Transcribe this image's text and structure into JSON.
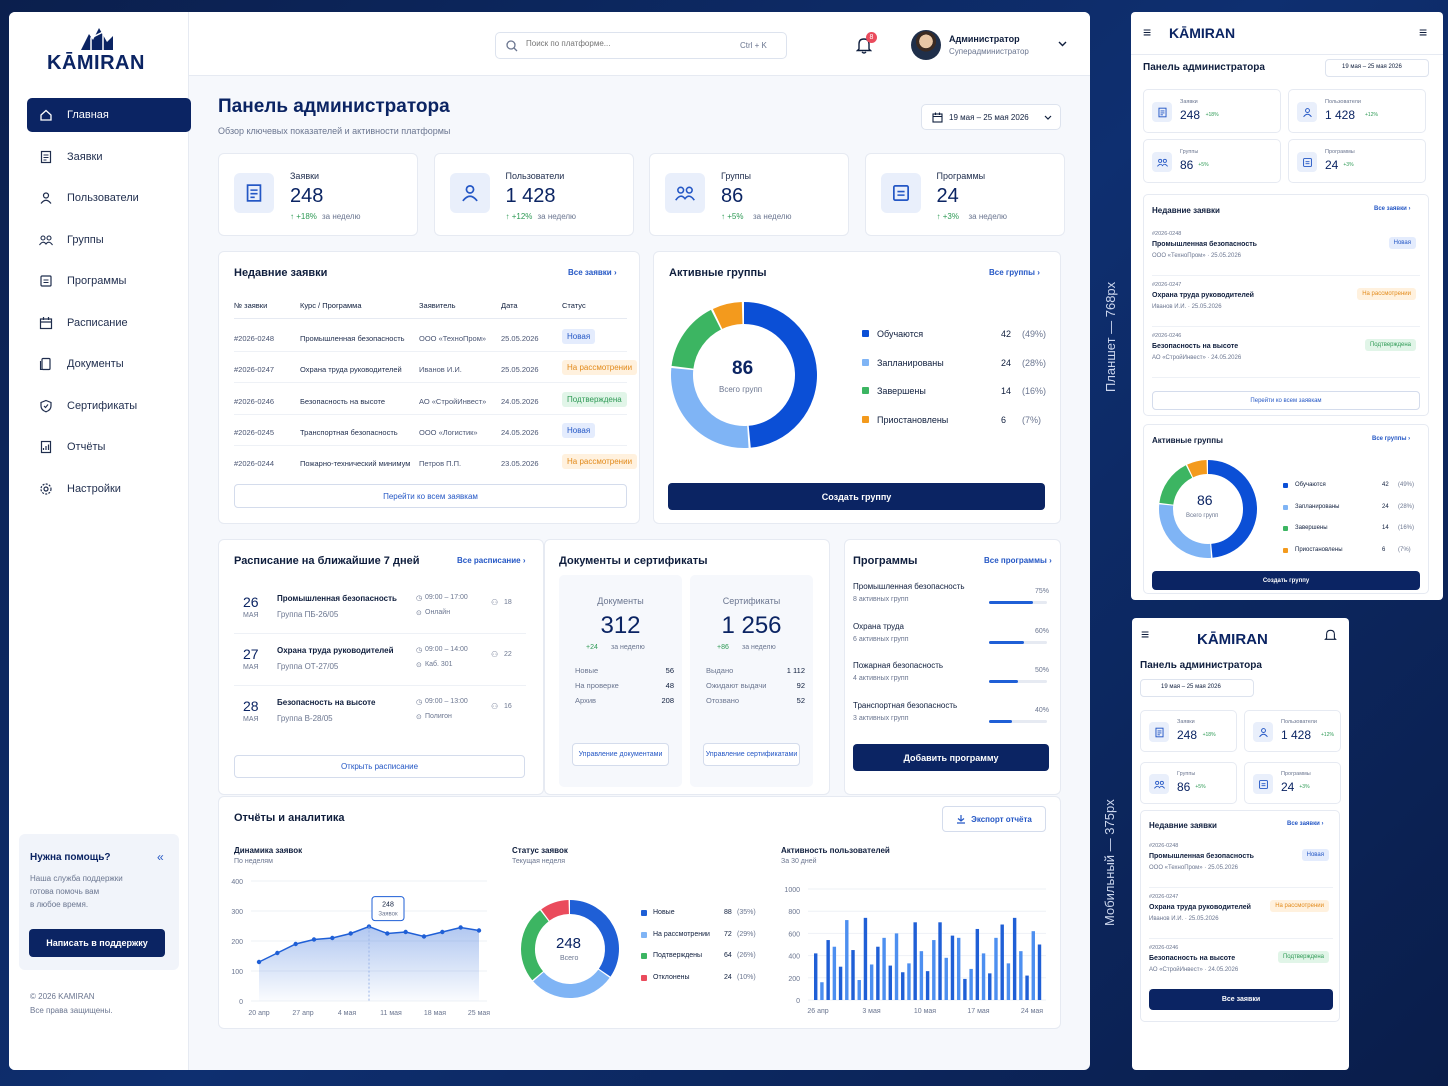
{
  "brand": {
    "logo_text": "KĀMIRAN"
  },
  "header": {
    "search_placeholder": "Поиск по платформе...",
    "search_shortcut": "Ctrl + K",
    "notif_count": "8",
    "user_name": "Администратор",
    "user_role": "Суперадминистратор"
  },
  "sidebar": {
    "items": [
      {
        "label": "Главная",
        "icon": "home-icon"
      },
      {
        "label": "Заявки",
        "icon": "requests-icon"
      },
      {
        "label": "Пользователи",
        "icon": "users-icon"
      },
      {
        "label": "Группы",
        "icon": "groups-icon"
      },
      {
        "label": "Программы",
        "icon": "programs-icon"
      },
      {
        "label": "Расписание",
        "icon": "calendar-icon"
      },
      {
        "label": "Документы",
        "icon": "documents-icon"
      },
      {
        "label": "Сертификаты",
        "icon": "certificate-icon"
      },
      {
        "label": "Отчёты",
        "icon": "report-icon"
      },
      {
        "label": "Настройки",
        "icon": "gear-icon"
      }
    ],
    "help": {
      "title": "Нужна помощь?",
      "text1": "Наша служба поддержки",
      "text2": "готова помочь вам",
      "text3": "в любое время.",
      "button": "Написать в поддержку"
    },
    "copyright": "© 2026 KAMIRAN",
    "rights": "Все права защищены."
  },
  "page": {
    "title": "Панель администратора",
    "subtitle": "Обзор ключевых показателей и активности платформы",
    "date_range": "19 мая – 25 мая 2026"
  },
  "stats": [
    {
      "label": "Заявки",
      "value": "248",
      "delta": "↑ +18%",
      "period": "за неделю"
    },
    {
      "label": "Пользователи",
      "value": "1 428",
      "delta": "↑ +12%",
      "period": "за неделю"
    },
    {
      "label": "Группы",
      "value": "86",
      "delta": "↑ +5%",
      "period": "за неделю"
    },
    {
      "label": "Программы",
      "value": "24",
      "delta": "↑ +3%",
      "period": "за неделю"
    }
  ],
  "requests": {
    "title": "Недавние заявки",
    "all_link": "Все заявки",
    "columns": [
      "№ заявки",
      "Курс / Программа",
      "Заявитель",
      "Дата",
      "Статус"
    ],
    "rows": [
      {
        "id": "#2026-0248",
        "course": "Промышленная безопасность",
        "applicant": "ООО «ТехноПром»",
        "date": "25.05.2026",
        "status": "Новая",
        "kind": "new"
      },
      {
        "id": "#2026-0247",
        "course": "Охрана труда руководителей",
        "applicant": "Иванов И.И.",
        "date": "25.05.2026",
        "status": "На рассмотрении",
        "kind": "rev"
      },
      {
        "id": "#2026-0246",
        "course": "Безопасность на высоте",
        "applicant": "АО «СтройИнвест»",
        "date": "24.05.2026",
        "status": "Подтверждена",
        "kind": "ok"
      },
      {
        "id": "#2026-0245",
        "course": "Транспортная безопасность",
        "applicant": "ООО «Логистик»",
        "date": "24.05.2026",
        "status": "Новая",
        "kind": "new"
      },
      {
        "id": "#2026-0244",
        "course": "Пожарно-технический минимум",
        "applicant": "Петров П.П.",
        "date": "23.05.2026",
        "status": "На рассмотрении",
        "kind": "rev"
      }
    ],
    "footer_button": "Перейти ко всем заявкам"
  },
  "groups": {
    "title": "Активные группы",
    "all_link": "Все группы",
    "total": "86",
    "total_label": "Всего групп",
    "button": "Создать группу",
    "legend": [
      {
        "name": "Обучаются",
        "value": "42",
        "pct": "(49%)",
        "color": "#0b4fd6",
        "share": 49
      },
      {
        "name": "Запланированы",
        "value": "24",
        "pct": "(28%)",
        "color": "#7fb4f5",
        "share": 28
      },
      {
        "name": "Завершены",
        "value": "14",
        "pct": "(16%)",
        "color": "#3cb562",
        "share": 16
      },
      {
        "name": "Приостановлены",
        "value": "6",
        "pct": "(7%)",
        "color": "#f39a1d",
        "share": 7
      }
    ]
  },
  "schedule": {
    "title": "Расписание на ближайшие 7 дней",
    "all_link": "Все расписание",
    "button": "Открыть расписание",
    "items": [
      {
        "day": "26",
        "month": "МАЯ",
        "course": "Промышленная безопасность",
        "group": "Группа ПБ-26/05",
        "time": "09:00 – 17:00",
        "place": "Онлайн",
        "count": "18"
      },
      {
        "day": "27",
        "month": "МАЯ",
        "course": "Охрана труда руководителей",
        "group": "Группа ОТ-27/05",
        "time": "09:00 – 14:00",
        "place": "Каб. 301",
        "count": "22"
      },
      {
        "day": "28",
        "month": "МАЯ",
        "course": "Безопасность на высоте",
        "group": "Группа В-28/05",
        "time": "09:00 – 13:00",
        "place": "Полигон",
        "count": "16"
      }
    ]
  },
  "docs": {
    "title": "Документы и сертификаты",
    "documents": {
      "label": "Документы",
      "value": "312",
      "delta": "+24",
      "period": "за неделю",
      "rows": [
        [
          "Новые",
          "56"
        ],
        [
          "На проверке",
          "48"
        ],
        [
          "Архив",
          "208"
        ]
      ],
      "button": "Управление документами"
    },
    "certificates": {
      "label": "Сертификаты",
      "value": "1 256",
      "delta": "+86",
      "period": "за неделю",
      "rows": [
        [
          "Выдано",
          "1 112"
        ],
        [
          "Ожидают выдачи",
          "92"
        ],
        [
          "Отозвано",
          "52"
        ]
      ],
      "button": "Управление сертификатами"
    }
  },
  "programs": {
    "title": "Программы",
    "all_link": "Все программы",
    "button": "Добавить программу",
    "items": [
      {
        "name": "Промышленная безопасность",
        "groups": "8 активных групп",
        "pct": "75%",
        "value": 75
      },
      {
        "name": "Охрана труда",
        "groups": "6 активных групп",
        "pct": "60%",
        "value": 60
      },
      {
        "name": "Пожарная безопасность",
        "groups": "4 активных групп",
        "pct": "50%",
        "value": 50
      },
      {
        "name": "Транспортная безопасность",
        "groups": "3 активных групп",
        "pct": "40%",
        "value": 40
      }
    ]
  },
  "reports": {
    "title": "Отчёты и аналитика",
    "export": "Экспорт отчёта",
    "line": {
      "title": "Динамика заявок",
      "sub": "По неделям",
      "tooltip_value": "248",
      "tooltip_label": "Заявок"
    },
    "donut": {
      "title": "Статус заявок",
      "sub": "Текущая неделя",
      "total": "248",
      "total_label": "Всего",
      "legend": [
        {
          "name": "Новые",
          "value": "88",
          "pct": "(35%)",
          "color": "#1f5fd6",
          "share": 35
        },
        {
          "name": "На рассмотрении",
          "value": "72",
          "pct": "(29%)",
          "color": "#7fb4f5",
          "share": 29
        },
        {
          "name": "Подтверждены",
          "value": "64",
          "pct": "(26%)",
          "color": "#3cb562",
          "share": 26
        },
        {
          "name": "Отклонены",
          "value": "24",
          "pct": "(10%)",
          "color": "#ea4b5c",
          "share": 10
        }
      ]
    },
    "bars": {
      "title": "Активность пользователей",
      "sub": "За 30 дней"
    }
  },
  "chart_data": [
    {
      "type": "line",
      "title": "Динамика заявок",
      "x": [
        "20 апр",
        "",
        "27 апр",
        "",
        "4 мая",
        "",
        "",
        "11 мая",
        "",
        "",
        "18 мая",
        "",
        "25 мая"
      ],
      "x_ticks": [
        "20 апр",
        "27 апр",
        "4 мая",
        "11 мая",
        "18 мая",
        "25 мая"
      ],
      "series": [
        {
          "values": [
            130,
            160,
            190,
            205,
            210,
            225,
            248,
            225,
            230,
            215,
            230,
            245,
            235
          ]
        }
      ],
      "ylim": [
        0,
        400
      ],
      "yticks": [
        "0",
        "100",
        "200",
        "300",
        "400"
      ]
    },
    {
      "type": "pie",
      "title": "Статус заявок",
      "categories": [
        "Новые",
        "На рассмотрении",
        "Подтверждены",
        "Отклонены"
      ],
      "values": [
        88,
        72,
        64,
        24
      ]
    },
    {
      "type": "bar",
      "title": "Активность пользователей",
      "x_ticks": [
        "26 апр",
        "3 мая",
        "10 мая",
        "17 мая",
        "24 мая"
      ],
      "ylim": [
        0,
        1000
      ],
      "yticks": [
        "0",
        "200",
        "400",
        "600",
        "800",
        "1000"
      ],
      "values": [
        420,
        160,
        540,
        480,
        300,
        720,
        450,
        180,
        740,
        320,
        480,
        560,
        310,
        600,
        250,
        330,
        700,
        440,
        260,
        540,
        700,
        380,
        580,
        560,
        190,
        280,
        640,
        420,
        240,
        560,
        680,
        330,
        740,
        440,
        220,
        620,
        500
      ]
    }
  ],
  "tablet": {
    "label": "Планшет — 768px",
    "title": "Панель администратора",
    "date_range": "19 мая – 25 мая 2026",
    "stats": [
      {
        "label": "Заявки",
        "value": "248",
        "delta": "+18%"
      },
      {
        "label": "Пользователи",
        "value": "1 428",
        "delta": "+12%"
      },
      {
        "label": "Группы",
        "value": "86",
        "delta": "+5%"
      },
      {
        "label": "Программы",
        "value": "24",
        "delta": "+3%"
      }
    ],
    "requests_title": "Недавние заявки",
    "requests_link": "Все заявки",
    "requests_button": "Перейти ко всем заявкам",
    "requests": [
      {
        "id": "#2026-0248",
        "course": "Промышленная безопасность",
        "meta": "ООО «ТехноПром» · 25.05.2026",
        "status": "Новая",
        "kind": "new"
      },
      {
        "id": "#2026-0247",
        "course": "Охрана труда руководителей",
        "meta": "Иванов И.И. · 25.05.2026",
        "status": "На рассмотрении",
        "kind": "rev"
      },
      {
        "id": "#2026-0246",
        "course": "Безопасность на высоте",
        "meta": "АО «СтройИнвест» · 24.05.2026",
        "status": "Подтверждена",
        "kind": "ok"
      }
    ],
    "groups_title": "Активные группы",
    "groups_link": "Все группы",
    "groups_button": "Создать группу"
  },
  "mobile": {
    "label": "Мобильный — 375px",
    "title": "Панель администратора",
    "date_range": "19 мая – 25 мая 2026",
    "stats": [
      {
        "label": "Заявки",
        "value": "248",
        "delta": "+18%"
      },
      {
        "label": "Пользователи",
        "value": "1 428",
        "delta": "+12%"
      },
      {
        "label": "Группы",
        "value": "86",
        "delta": "+5%"
      },
      {
        "label": "Программы",
        "value": "24",
        "delta": "+3%"
      }
    ],
    "requests_title": "Недавние заявки",
    "requests_link": "Все заявки",
    "button": "Все заявки",
    "requests": [
      {
        "id": "#2026-0248",
        "course": "Промышленная безопасность",
        "meta": "ООО «ТехноПром» · 25.05.2026",
        "status": "Новая",
        "kind": "new"
      },
      {
        "id": "#2026-0247",
        "course": "Охрана труда руководителей",
        "meta": "Иванов И.И. · 25.05.2026",
        "status": "На рассмотрении",
        "kind": "rev"
      },
      {
        "id": "#2026-0246",
        "course": "Безопасность на высоте",
        "meta": "АО «СтройИнвест» · 24.05.2026",
        "status": "Подтверждена",
        "kind": "ok"
      }
    ]
  }
}
